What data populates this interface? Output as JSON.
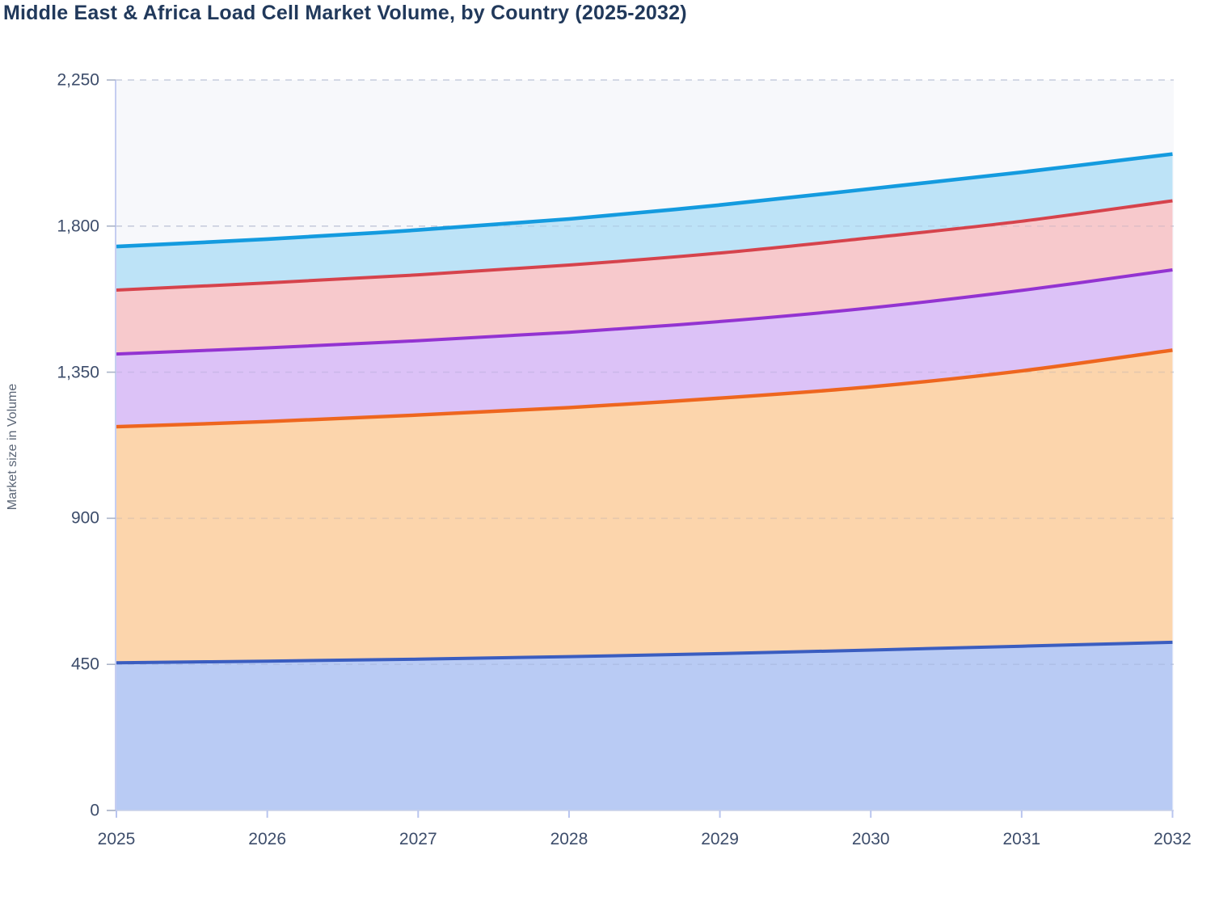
{
  "page": {
    "title": "Middle East & Africa Load Cell Market Volume, by Country (2025-2032)"
  },
  "chart_data": {
    "type": "area",
    "stacked": true,
    "title": "Middle East & Africa Load Cell Market Volume, by Country (2025-2032)",
    "xlabel": "",
    "ylabel": "Market size in Volume",
    "x": [
      2025,
      2026,
      2027,
      2028,
      2029,
      2030,
      2031,
      2032
    ],
    "x_tick_labels": [
      "2025",
      "2026",
      "2027",
      "2028",
      "2029",
      "2030",
      "2031",
      "2032"
    ],
    "y_ticks": [
      0,
      450,
      900,
      1350,
      1800,
      2250
    ],
    "y_tick_labels": [
      "0",
      "450",
      "900",
      "1,350",
      "1,800",
      "2,250"
    ],
    "ylim": [
      0,
      2250
    ],
    "grid": "horizontal-dashed",
    "legend_position": "none-visible",
    "series_note": "stacked bottom-to-top; country names not shown in image, series identified by color; values estimated from axis",
    "series": [
      {
        "name": "series-1-blue",
        "line_color": "#3a5dc0",
        "fill_color": "#b9cbf4",
        "values": [
          455,
          460,
          466,
          474,
          483,
          494,
          506,
          518
        ],
        "stacked_top": [
          455,
          460,
          466,
          474,
          483,
          494,
          506,
          518
        ]
      },
      {
        "name": "series-2-orange",
        "line_color": "#ee661f",
        "fill_color": "#fcd5ac",
        "values": [
          727,
          738,
          752,
          767,
          787,
          811,
          848,
          900
        ],
        "stacked_top": [
          1182,
          1198,
          1218,
          1241,
          1270,
          1305,
          1354,
          1418
        ]
      },
      {
        "name": "series-3-purple",
        "line_color": "#9333d1",
        "fill_color": "#dcc2f7",
        "values": [
          224,
          227,
          229,
          232,
          236,
          243,
          248,
          247
        ],
        "stacked_top": [
          1406,
          1425,
          1447,
          1473,
          1506,
          1548,
          1602,
          1665
        ]
      },
      {
        "name": "series-4-red",
        "line_color": "#d6434c",
        "fill_color": "#f7c9cc",
        "values": [
          197,
          200,
          203,
          207,
          211,
          216,
          213,
          213
        ],
        "stacked_top": [
          1603,
          1625,
          1650,
          1680,
          1717,
          1764,
          1815,
          1878
        ]
      },
      {
        "name": "series-5-cyan",
        "line_color": "#149bdf",
        "fill_color": "#bde3f7",
        "values": [
          134,
          135,
          138,
          142,
          148,
          151,
          151,
          144
        ],
        "stacked_top": [
          1737,
          1760,
          1788,
          1822,
          1865,
          1915,
          1966,
          2022
        ]
      }
    ]
  },
  "colors": {
    "title_text": "#21395b",
    "tick_text": "#3d4d6b",
    "axis_title_text": "#5a6576",
    "plot_background": "#f7f8fb",
    "gridline": "#d9dde9",
    "y_axis_line": "#c5cdf1",
    "x_axis_line": "#c9d1e8",
    "x_tick_mark": "#b9c5ef",
    "y_tick_mark": "#aab4c8"
  }
}
